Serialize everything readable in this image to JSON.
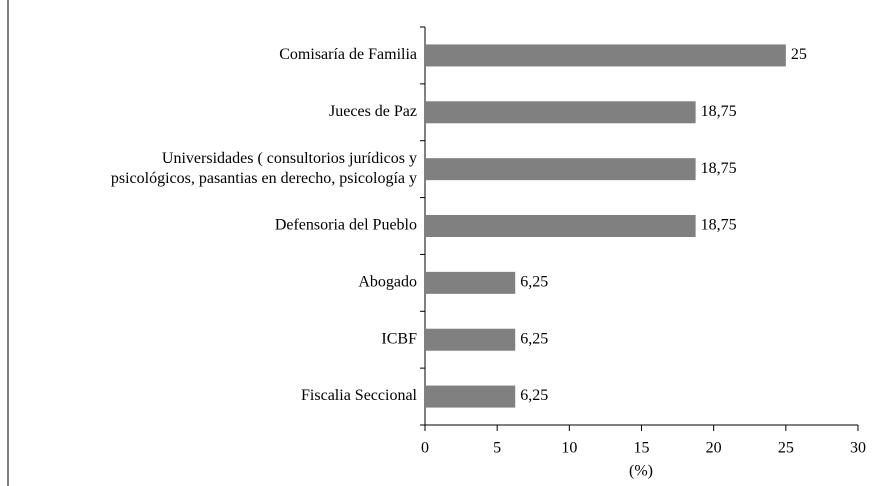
{
  "chart_data": {
    "type": "bar",
    "orientation": "horizontal",
    "categories": [
      "Comisaría de Familia",
      "Jueces de Paz",
      "Universidades ( consultorios jurídicos y\npsicológicos, pasantias en derecho, psicología y",
      "Defensoria del Pueblo",
      "Abogado",
      "ICBF",
      "Fiscalia Seccional"
    ],
    "values": [
      25,
      18.75,
      18.75,
      18.75,
      6.25,
      6.25,
      6.25
    ],
    "value_labels": [
      "25",
      "18,75",
      "18,75",
      "18,75",
      "6,25",
      "6,25",
      "6,25"
    ],
    "color": "#808080",
    "x_label": "(%)",
    "xlim": [
      0,
      30
    ],
    "xticks": [
      0,
      5,
      10,
      15,
      20,
      25,
      30
    ],
    "grid": false
  }
}
